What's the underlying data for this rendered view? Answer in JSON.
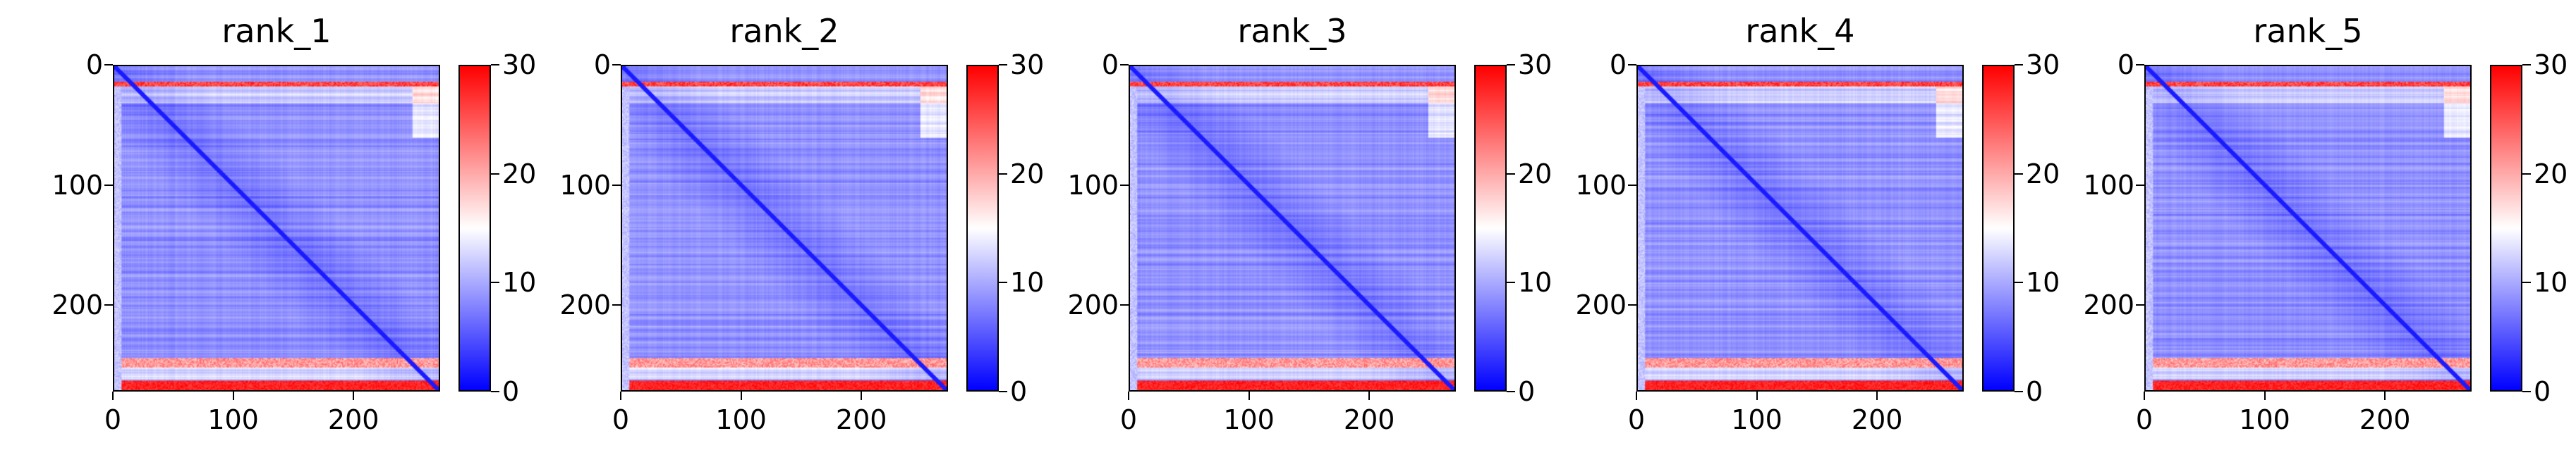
{
  "chart_data": [
    {
      "type": "heatmap",
      "title": "rank_1",
      "x_ticks": [
        0,
        100,
        200
      ],
      "y_ticks": [
        0,
        100,
        200
      ],
      "xlim": [
        0,
        272
      ],
      "ylim": [
        272,
        0
      ],
      "colorbar": {
        "ticks": [
          0,
          10,
          20,
          30
        ],
        "range": [
          0,
          30
        ],
        "colormap": "bwr"
      },
      "colors": {
        "low": "#0000ff",
        "mid": "#ffffff",
        "high": "#ff0000"
      }
    },
    {
      "type": "heatmap",
      "title": "rank_2",
      "x_ticks": [
        0,
        100,
        200
      ],
      "y_ticks": [
        0,
        100,
        200
      ],
      "xlim": [
        0,
        272
      ],
      "ylim": [
        272,
        0
      ],
      "colorbar": {
        "ticks": [
          0,
          10,
          20,
          30
        ],
        "range": [
          0,
          30
        ],
        "colormap": "bwr"
      },
      "colors": {
        "low": "#0000ff",
        "mid": "#ffffff",
        "high": "#ff0000"
      }
    },
    {
      "type": "heatmap",
      "title": "rank_3",
      "x_ticks": [
        0,
        100,
        200
      ],
      "y_ticks": [
        0,
        100,
        200
      ],
      "xlim": [
        0,
        272
      ],
      "ylim": [
        272,
        0
      ],
      "colorbar": {
        "ticks": [
          0,
          10,
          20,
          30
        ],
        "range": [
          0,
          30
        ],
        "colormap": "bwr"
      },
      "colors": {
        "low": "#0000ff",
        "mid": "#ffffff",
        "high": "#ff0000"
      }
    },
    {
      "type": "heatmap",
      "title": "rank_4",
      "x_ticks": [
        0,
        100,
        200
      ],
      "y_ticks": [
        0,
        100,
        200
      ],
      "xlim": [
        0,
        272
      ],
      "ylim": [
        272,
        0
      ],
      "colorbar": {
        "ticks": [
          0,
          10,
          20,
          30
        ],
        "range": [
          0,
          30
        ],
        "colormap": "bwr"
      },
      "colors": {
        "low": "#0000ff",
        "mid": "#ffffff",
        "high": "#ff0000"
      }
    },
    {
      "type": "heatmap",
      "title": "rank_5",
      "x_ticks": [
        0,
        100,
        200
      ],
      "y_ticks": [
        0,
        100,
        200
      ],
      "xlim": [
        0,
        272
      ],
      "ylim": [
        272,
        0
      ],
      "colorbar": {
        "ticks": [
          0,
          10,
          20,
          30
        ],
        "range": [
          0,
          30
        ],
        "colormap": "bwr"
      },
      "colors": {
        "low": "#0000ff",
        "mid": "#ffffff",
        "high": "#ff0000"
      }
    }
  ]
}
